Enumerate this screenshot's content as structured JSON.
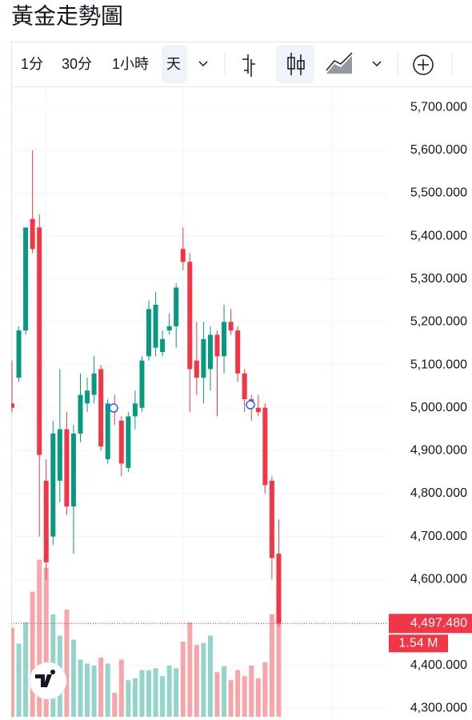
{
  "toolbar": {
    "intervals": [
      "1分",
      "30分",
      "1小時",
      "天"
    ],
    "active": 3
  },
  "chart_data": {
    "type": "candlestick",
    "title": "黃金走勢圖",
    "open": [
      5010,
      5070,
      5180,
      5440,
      5420,
      4830,
      4700,
      4830,
      4950,
      4770,
      4940,
      5010,
      5030,
      5090,
      4880,
      5000,
      4970,
      4860,
      4980,
      5000,
      5120,
      5140,
      5130,
      5180,
      5190,
      5370,
      5340,
      5110,
      5070,
      5090,
      5170,
      5120,
      5200,
      5180,
      5080,
      5020,
      5000,
      5000,
      4830,
      4660
    ],
    "high": [
      5110,
      5190,
      5420,
      5600,
      5450,
      4880,
      4970,
      5090,
      4990,
      4960,
      5080,
      5070,
      5120,
      5100,
      5020,
      5030,
      4980,
      4990,
      5040,
      5120,
      5250,
      5270,
      5180,
      5220,
      5290,
      5420,
      5360,
      5200,
      5200,
      5190,
      5180,
      5240,
      5230,
      5190,
      5090,
      5030,
      5030,
      5010,
      4840,
      4740
    ],
    "low": [
      4990,
      5060,
      5170,
      5360,
      4700,
      4600,
      4680,
      4780,
      4750,
      4660,
      4920,
      4990,
      5010,
      4900,
      4870,
      4960,
      4840,
      4850,
      4950,
      4990,
      5110,
      5120,
      5120,
      5170,
      5140,
      5320,
      4990,
      5030,
      5010,
      5040,
      4980,
      5080,
      5170,
      5060,
      4990,
      4970,
      4980,
      4800,
      4600,
      4490
    ],
    "close": [
      5000,
      5180,
      5420,
      5370,
      4890,
      4640,
      4940,
      4950,
      4770,
      4940,
      5030,
      5040,
      5080,
      4910,
      5010,
      4990,
      4870,
      4980,
      5010,
      5110,
      5230,
      5240,
      5160,
      5190,
      5280,
      5340,
      5090,
      5070,
      5160,
      5170,
      5120,
      5200,
      5180,
      5080,
      5020,
      5000,
      4990,
      4820,
      4650,
      4497.48
    ],
    "volume": [
      1.34,
      1.1,
      1.42,
      1.88,
      2.36,
      2.24,
      1.54,
      1.22,
      1.61,
      1.16,
      0.86,
      0.8,
      0.77,
      0.89,
      0.8,
      0.36,
      0.86,
      0.55,
      0.58,
      0.7,
      0.7,
      0.73,
      0.61,
      0.77,
      0.73,
      1.13,
      1.42,
      1.08,
      1.11,
      1.22,
      0.67,
      0.76,
      0.55,
      0.7,
      0.61,
      0.77,
      0.58,
      0.82,
      1.54,
      1.54
    ],
    "up_color": "#089981",
    "down_color": "#f23645",
    "volume_up_color": "#93d5cb",
    "volume_down_color": "#f6a5a8",
    "ylim": [
      4280,
      5745
    ],
    "volume_lim": [
      0,
      9.45
    ],
    "yticks": [
      {
        "value": 4300,
        "label": "4,300.000"
      },
      {
        "value": 4400,
        "label": "4,400.000"
      },
      {
        "value": 4500,
        "label": "4,500.000"
      },
      {
        "value": 4600,
        "label": "4,600.000"
      },
      {
        "value": 4700,
        "label": "4,700.000"
      },
      {
        "value": 4800,
        "label": "4,800.000"
      },
      {
        "value": 4900,
        "label": "4,900.000"
      },
      {
        "value": 5000,
        "label": "5,000.000"
      },
      {
        "value": 5100,
        "label": "5,100.000"
      },
      {
        "value": 5200,
        "label": "5,200.000"
      },
      {
        "value": 5300,
        "label": "5,300.000"
      },
      {
        "value": 5400,
        "label": "5,400.000"
      },
      {
        "value": 5500,
        "label": "5,500.000"
      },
      {
        "value": 5600,
        "label": "5,600.000"
      },
      {
        "value": 5700,
        "label": "5,700.000"
      }
    ],
    "grid": true,
    "last_price": {
      "value": 4497.48,
      "label": "4,497.480"
    },
    "last_volume": {
      "value": 1.54,
      "label": "1.54 M"
    }
  }
}
